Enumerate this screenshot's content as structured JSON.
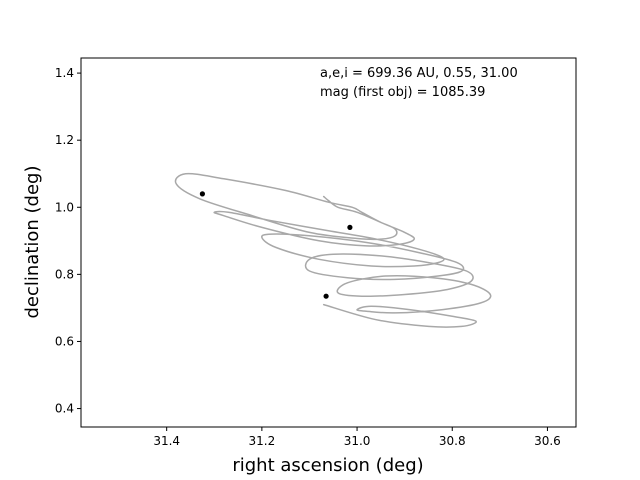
{
  "chart_data": {
    "type": "line",
    "title": "",
    "xlabel": "right ascension (deg)",
    "ylabel": "declination (deg)",
    "xlim": [
      31.58,
      30.54
    ],
    "ylim": [
      0.345,
      1.445
    ],
    "x_inverted": true,
    "grid": false,
    "legend": "none",
    "x_ticks": [
      31.4,
      31.2,
      31.0,
      30.8,
      30.6
    ],
    "x_tick_labels": [
      "31.4",
      "31.2",
      "31.0",
      "30.8",
      "30.6"
    ],
    "y_ticks": [
      0.4,
      0.6,
      0.8,
      1.0,
      1.2,
      1.4
    ],
    "y_tick_labels": [
      "0.4",
      "0.6",
      "0.8",
      "1.0",
      "1.2",
      "1.4"
    ],
    "annotations": [
      "a,e,i = 699.36 AU, 0.55, 31.00",
      "mag (first obj) = 1085.39"
    ],
    "series": [
      {
        "color": "#a8a8a8",
        "x": [
          31.07,
          31.06,
          31.04,
          31.0,
          30.95,
          30.92,
          30.92,
          30.95,
          31.0,
          31.1,
          31.22,
          31.33,
          31.38,
          31.36,
          31.28,
          31.15,
          31.06,
          31.01,
          30.99,
          30.95,
          30.9,
          30.88,
          30.91,
          30.98,
          31.08,
          31.2,
          31.28,
          31.3,
          31.27,
          31.18,
          31.06,
          30.96,
          30.87,
          30.82,
          30.83,
          30.88,
          30.97,
          31.08,
          31.17,
          31.2,
          31.18,
          31.1,
          30.98,
          30.87,
          30.79,
          30.78,
          30.83,
          30.92,
          31.02,
          31.1,
          31.1,
          31.05,
          30.95,
          30.85,
          30.77,
          30.76,
          30.81,
          30.9,
          30.99,
          31.04,
          31.02,
          30.94,
          30.84,
          30.76,
          30.72,
          30.74,
          30.82,
          30.92,
          30.98,
          31.0,
          30.97,
          30.89,
          30.8,
          30.75,
          30.78,
          30.85,
          30.96,
          31.07
        ],
        "y": [
          1.032,
          1.02,
          1.0,
          0.985,
          0.955,
          0.935,
          0.915,
          0.905,
          0.907,
          0.925,
          0.975,
          1.025,
          1.07,
          1.1,
          1.085,
          1.05,
          1.015,
          1.0,
          0.985,
          0.955,
          0.925,
          0.905,
          0.89,
          0.885,
          0.9,
          0.94,
          0.975,
          0.985,
          0.985,
          0.96,
          0.93,
          0.905,
          0.875,
          0.85,
          0.835,
          0.825,
          0.825,
          0.845,
          0.88,
          0.91,
          0.92,
          0.915,
          0.895,
          0.865,
          0.835,
          0.81,
          0.795,
          0.785,
          0.79,
          0.81,
          0.845,
          0.86,
          0.855,
          0.835,
          0.81,
          0.78,
          0.755,
          0.74,
          0.735,
          0.745,
          0.775,
          0.795,
          0.79,
          0.77,
          0.74,
          0.715,
          0.695,
          0.685,
          0.69,
          0.695,
          0.705,
          0.695,
          0.675,
          0.66,
          0.645,
          0.645,
          0.665,
          0.71
        ]
      }
    ],
    "markers": [
      {
        "x": 31.325,
        "y": 1.04
      },
      {
        "x": 31.015,
        "y": 0.94
      },
      {
        "x": 31.065,
        "y": 0.735
      }
    ]
  }
}
